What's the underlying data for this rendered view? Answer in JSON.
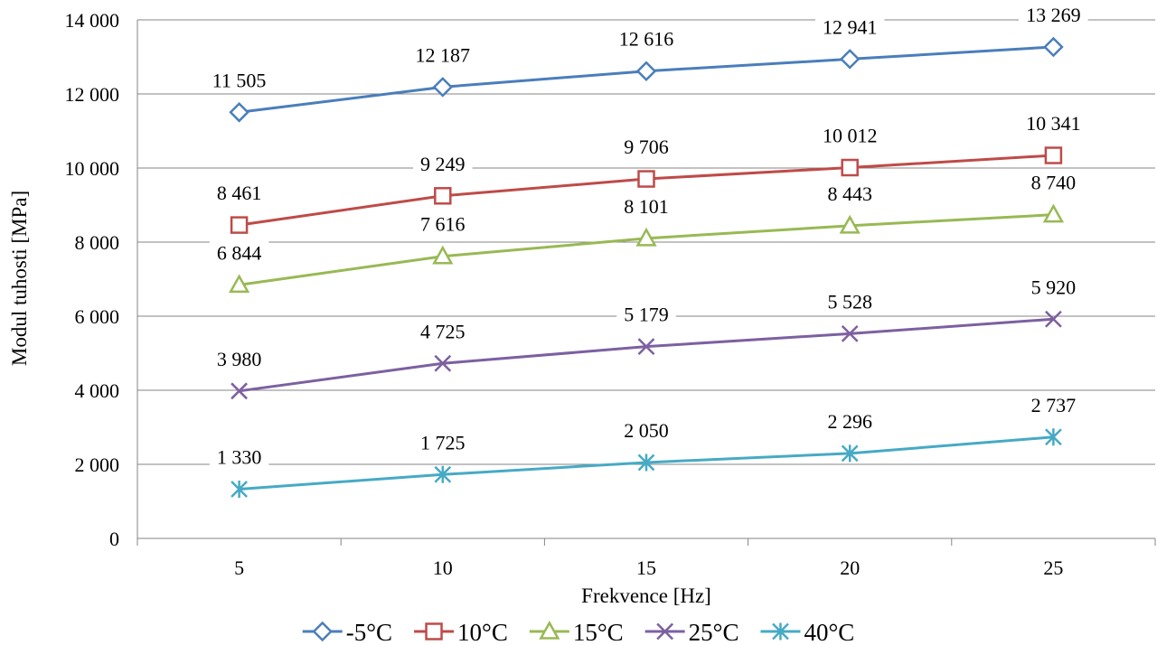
{
  "chart_data": {
    "type": "line",
    "x": [
      5,
      10,
      15,
      20,
      25
    ],
    "xlabel": "Frekvence [Hz]",
    "ylabel": "Modul tuhosti [MPa]",
    "ylim": [
      0,
      14000
    ],
    "yticks": [
      0,
      2000,
      4000,
      6000,
      8000,
      10000,
      12000,
      14000
    ],
    "ytick_labels": [
      "0",
      "2 000",
      "4 000",
      "6 000",
      "8 000",
      "10 000",
      "12 000",
      "14 000"
    ],
    "xtick_labels": [
      "5",
      "10",
      "15",
      "20",
      "25"
    ],
    "grid": "horizontal",
    "legend": "bottom",
    "series": [
      {
        "name": "-5°C",
        "values": [
          11505,
          12187,
          12616,
          12941,
          13269
        ],
        "labels": [
          "11 505",
          "12 187",
          "12 616",
          "12 941",
          "13 269"
        ],
        "color": "#4a7ebb",
        "marker": "diamond"
      },
      {
        "name": "10°C",
        "values": [
          8461,
          9249,
          9706,
          10012,
          10341
        ],
        "labels": [
          "8 461",
          "9 249",
          "9 706",
          "10 012",
          "10 341"
        ],
        "color": "#be4b48",
        "marker": "square"
      },
      {
        "name": "15°C",
        "values": [
          6844,
          7616,
          8101,
          8443,
          8740
        ],
        "labels": [
          "6 844",
          "7 616",
          "8 101",
          "8 443",
          "8 740"
        ],
        "color": "#98b954",
        "marker": "triangle"
      },
      {
        "name": "25°C",
        "values": [
          3980,
          4725,
          5179,
          5528,
          5920
        ],
        "labels": [
          "3 980",
          "4 725",
          "5 179",
          "5 528",
          "5 920"
        ],
        "color": "#7d60a0",
        "marker": "x"
      },
      {
        "name": "40°C",
        "values": [
          1330,
          1725,
          2050,
          2296,
          2737
        ],
        "labels": [
          "1 330",
          "1 725",
          "2 050",
          "2 296",
          "2 737"
        ],
        "color": "#46aac5",
        "marker": "asterisk"
      }
    ]
  }
}
